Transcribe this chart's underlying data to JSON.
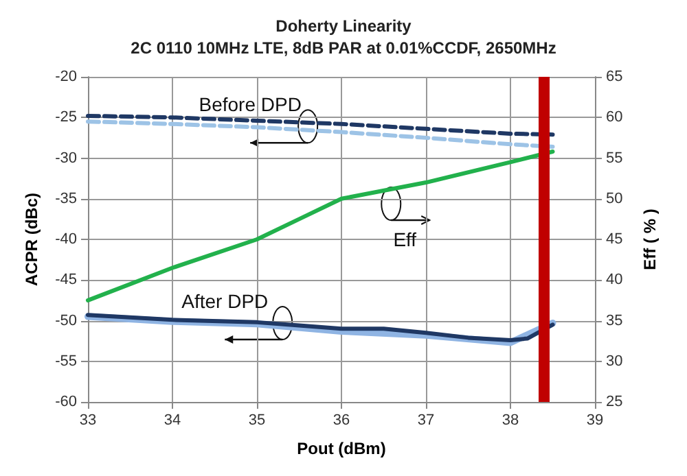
{
  "chart_data": {
    "type": "line",
    "title": "Doherty Linearity",
    "subtitle": "2C 0110 10MHz LTE, 8dB PAR at 0.01%CCDF, 2650MHz",
    "xlabel": "Pout (dBm)",
    "ylabel": "ACPR (dBc)",
    "y2label": "Eff ( % )",
    "xlim": [
      33,
      39
    ],
    "xticks": [
      33,
      34,
      35,
      36,
      37,
      38,
      39
    ],
    "ylim": [
      -60,
      -20
    ],
    "yticks": [
      -60,
      -55,
      -50,
      -45,
      -40,
      -35,
      -30,
      -25,
      -20
    ],
    "y2lim": [
      25,
      65
    ],
    "y2ticks": [
      25,
      30,
      35,
      40,
      45,
      50,
      55,
      60,
      65
    ],
    "grid": true,
    "marker": "none",
    "series": [
      {
        "color": "#1f3864",
        "line_style": "dashed",
        "x": [
          33,
          34,
          35,
          36,
          37,
          38,
          38.5
        ],
        "values": [
          -24.8,
          -25,
          -25.4,
          -25.8,
          -26.4,
          -27,
          -27.1
        ]
      },
      {
        "color": "#9dc3e6",
        "line_style": "dashed",
        "x": [
          33,
          34,
          35,
          36,
          37,
          38,
          38.5
        ],
        "values": [
          -25.5,
          -25.8,
          -26.2,
          -26.8,
          -27.5,
          -28.3,
          -28.6
        ]
      },
      {
        "color": "#8fb4e3",
        "line_style": "solid",
        "x": [
          33,
          34,
          35,
          36,
          37,
          38,
          38.5
        ],
        "values": [
          -49.5,
          -50.1,
          -50.4,
          -51.3,
          -51.8,
          -52.7,
          -50.3
        ]
      },
      {
        "color": "#1f3864",
        "line_style": "solid",
        "x": [
          33,
          34,
          35,
          35.5,
          36,
          36.5,
          37,
          37.5,
          38,
          38.2,
          38.5
        ],
        "values": [
          -49.3,
          -49.9,
          -50.2,
          -50.6,
          -51,
          -51,
          -51.5,
          -52.1,
          -52.4,
          -52.2,
          -50.5
        ]
      },
      {
        "color": "#22b14c",
        "line_style": "solid",
        "axis": "y2",
        "x": [
          33,
          34,
          35,
          35.5,
          36,
          37,
          38,
          38.5
        ],
        "values": [
          37.5,
          41.5,
          45,
          47.5,
          50,
          52,
          54.5,
          55.8
        ]
      }
    ],
    "ref_lines": [
      {
        "axis": "x",
        "value": 38.4,
        "color": "#c00000",
        "line_style": "solid"
      }
    ],
    "annotations": [
      "Before DPD",
      "Eff",
      "After DPD"
    ]
  }
}
